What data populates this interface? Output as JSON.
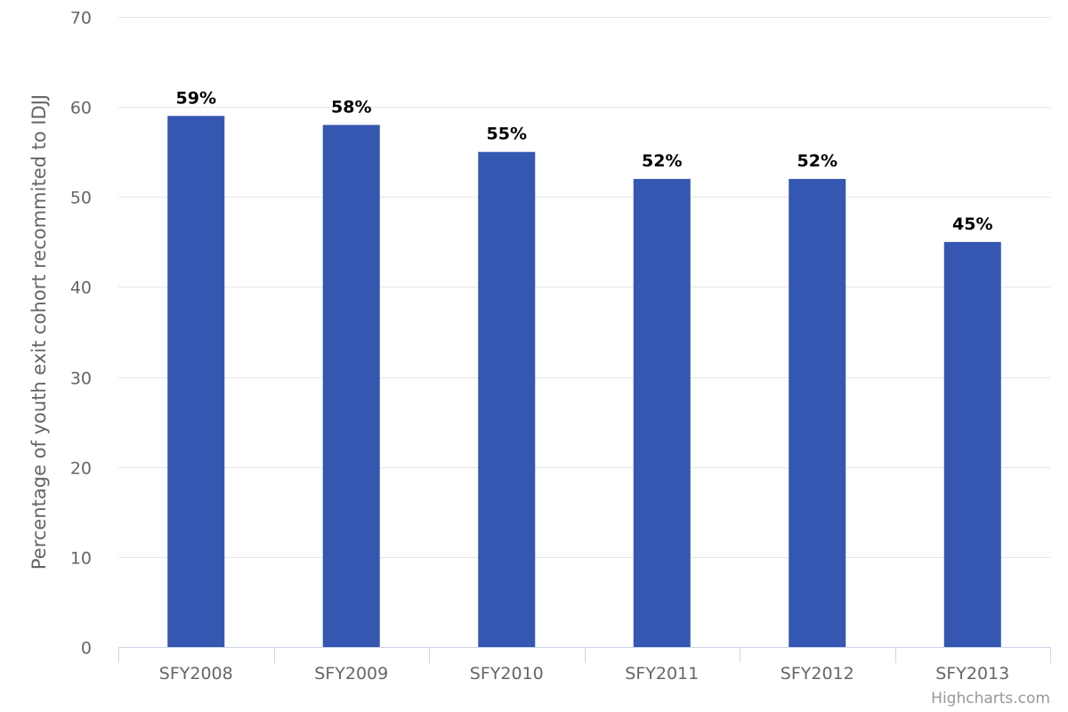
{
  "chart_data": {
    "type": "bar",
    "categories": [
      "SFY2008",
      "SFY2009",
      "SFY2010",
      "SFY2011",
      "SFY2012",
      "SFY2013"
    ],
    "values": [
      59,
      58,
      55,
      52,
      52,
      45
    ],
    "data_labels": [
      "59%",
      "58%",
      "55%",
      "52%",
      "52%",
      "45%"
    ],
    "title": "",
    "xlabel": "",
    "ylabel": "Percentage of youth exit cohort recommited to IDJJ",
    "ylim": [
      0,
      70
    ],
    "yticks": [
      0,
      10,
      20,
      30,
      40,
      50,
      60,
      70
    ],
    "grid": true,
    "legend": "none",
    "bar_color": "#3557b1"
  },
  "credits": "Highcharts.com"
}
